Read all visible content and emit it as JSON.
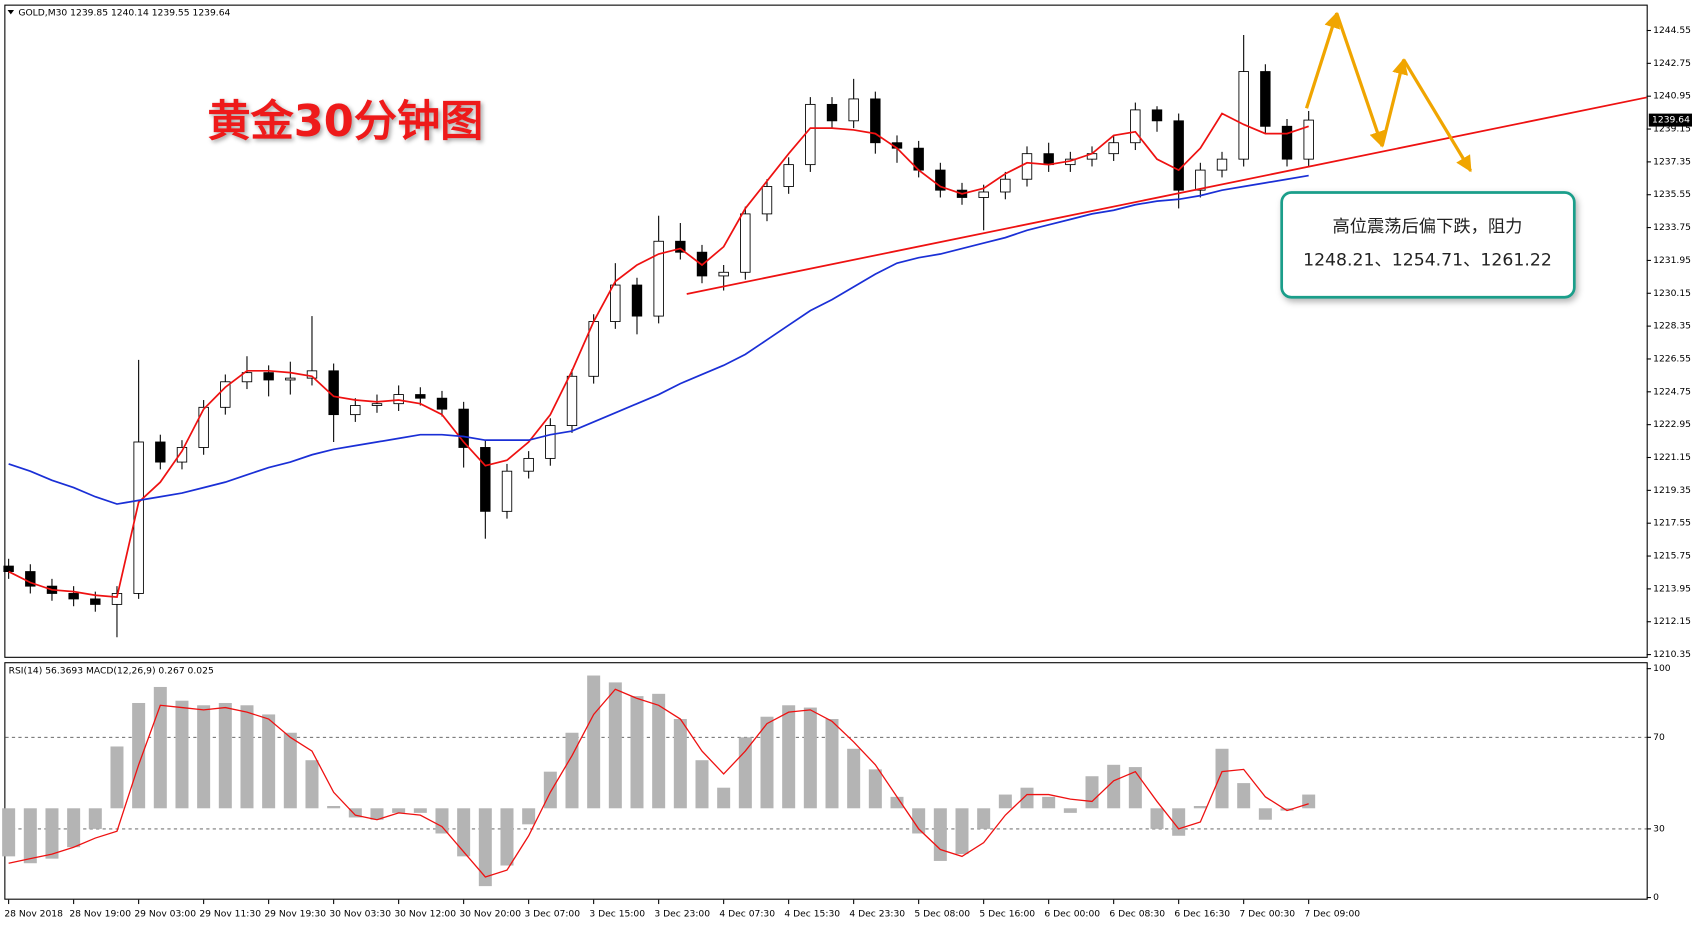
{
  "chart_data": [
    {
      "type": "candlestick",
      "title": "GOLD,M30  1239.85 1240.14 1239.55 1239.64",
      "categories": [
        "28 Nov 2018",
        null,
        null,
        "28 Nov 19:00",
        null,
        null,
        "29 Nov 03:00",
        null,
        null,
        "29 Nov 11:30",
        null,
        null,
        "29 Nov 19:30",
        null,
        null,
        "30 Nov 03:30",
        null,
        null,
        "30 Nov 12:00",
        null,
        null,
        "30 Nov 20:00",
        null,
        null,
        "3 Dec 07:00",
        null,
        null,
        "3 Dec 15:00",
        null,
        null,
        "3 Dec 23:00",
        null,
        null,
        "4 Dec 07:30",
        null,
        null,
        "4 Dec 15:30",
        null,
        null,
        "4 Dec 23:30",
        null,
        null,
        "5 Dec 08:00",
        null,
        null,
        "5 Dec 16:00",
        null,
        null,
        "6 Dec 00:00",
        null,
        null,
        "6 Dec 08:30",
        null,
        null,
        "6 Dec 16:30",
        null,
        null,
        "7 Dec 00:30",
        null,
        null,
        "7 Dec 09:00"
      ],
      "open": [
        1215.2,
        1214.9,
        1214.1,
        1213.7,
        1213.4,
        1213.1,
        1213.7,
        1222.0,
        1220.9,
        1221.7,
        1223.9,
        1225.3,
        1225.8,
        1225.4,
        1225.5,
        1225.9,
        1223.5,
        1224.0,
        1224.1,
        1224.6,
        1224.4,
        1223.8,
        1221.7,
        1218.2,
        1220.4,
        1221.1,
        1222.9,
        1225.6,
        1228.6,
        1230.6,
        1228.9,
        1233.0,
        1232.4,
        1231.1,
        1231.3,
        1234.5,
        1236.0,
        1237.2,
        1240.5,
        1239.6,
        1240.8,
        1238.4,
        1238.1,
        1236.9,
        1235.8,
        1235.4,
        1235.7,
        1236.4,
        1237.8,
        1237.2,
        1237.5,
        1237.8,
        1238.4,
        1240.2,
        1239.6,
        1235.8,
        1236.9,
        1237.5,
        1242.3,
        1239.3,
        1237.5
      ],
      "high": [
        1215.6,
        1215.3,
        1214.5,
        1214.1,
        1213.8,
        1214.1,
        1226.5,
        1222.4,
        1222.1,
        1224.3,
        1225.7,
        1226.7,
        1226.2,
        1226.4,
        1228.9,
        1226.3,
        1224.4,
        1224.6,
        1225.1,
        1225.0,
        1224.8,
        1224.2,
        1222.1,
        1220.8,
        1221.5,
        1223.3,
        1226.0,
        1229.0,
        1231.8,
        1231.0,
        1234.4,
        1234.0,
        1232.8,
        1231.7,
        1234.9,
        1236.4,
        1237.6,
        1240.9,
        1240.9,
        1241.9,
        1241.2,
        1238.8,
        1238.5,
        1237.3,
        1236.2,
        1236.1,
        1236.8,
        1238.2,
        1238.4,
        1237.9,
        1238.2,
        1238.8,
        1240.6,
        1240.4,
        1240.0,
        1237.3,
        1237.9,
        1244.3,
        1242.7,
        1239.7,
        1240.14
      ],
      "low": [
        1214.5,
        1213.7,
        1213.3,
        1213.0,
        1212.7,
        1211.3,
        1213.4,
        1220.5,
        1220.5,
        1221.3,
        1223.5,
        1224.9,
        1224.5,
        1224.6,
        1225.1,
        1222.0,
        1223.1,
        1223.6,
        1223.7,
        1224.0,
        1223.4,
        1220.6,
        1216.7,
        1217.8,
        1220.0,
        1220.7,
        1222.5,
        1225.2,
        1228.2,
        1227.9,
        1228.5,
        1232.0,
        1230.7,
        1230.3,
        1230.9,
        1234.1,
        1235.6,
        1236.8,
        1239.2,
        1239.2,
        1237.8,
        1237.3,
        1236.5,
        1235.4,
        1235.0,
        1233.6,
        1235.3,
        1236.0,
        1236.8,
        1236.8,
        1237.1,
        1237.4,
        1238.0,
        1239.0,
        1234.8,
        1235.4,
        1236.5,
        1237.1,
        1238.9,
        1237.1,
        1237.1
      ],
      "close": [
        1214.9,
        1214.1,
        1213.7,
        1213.4,
        1213.1,
        1213.7,
        1222.0,
        1220.9,
        1221.7,
        1223.9,
        1225.3,
        1225.8,
        1225.4,
        1225.5,
        1225.9,
        1223.5,
        1224.0,
        1224.1,
        1224.6,
        1224.4,
        1223.8,
        1221.7,
        1218.2,
        1220.4,
        1221.1,
        1222.9,
        1225.6,
        1228.6,
        1230.6,
        1228.9,
        1233.0,
        1232.4,
        1231.1,
        1231.3,
        1234.5,
        1236.0,
        1237.2,
        1240.5,
        1239.6,
        1240.8,
        1238.4,
        1238.1,
        1236.9,
        1235.8,
        1235.4,
        1235.7,
        1236.4,
        1237.8,
        1237.2,
        1237.5,
        1237.8,
        1238.4,
        1240.2,
        1239.6,
        1235.8,
        1236.9,
        1237.5,
        1242.3,
        1239.3,
        1237.5,
        1239.64
      ],
      "up_color": "#ffffff",
      "down_color": "#000000",
      "series": [
        {
          "color": "#ee1111",
          "values": [
            1214.9,
            1214.3,
            1213.9,
            1213.8,
            1213.6,
            1213.5,
            1218.7,
            1219.8,
            1221.5,
            1223.8,
            1225.0,
            1225.9,
            1225.9,
            1225.8,
            1225.6,
            1224.5,
            1224.3,
            1224.2,
            1224.3,
            1224.1,
            1223.5,
            1222.0,
            1220.7,
            1221.0,
            1222.0,
            1223.5,
            1225.9,
            1228.6,
            1230.8,
            1231.7,
            1232.3,
            1232.6,
            1231.7,
            1232.7,
            1234.8,
            1236.3,
            1237.8,
            1239.2,
            1239.2,
            1239.1,
            1238.9,
            1238.1,
            1236.9,
            1236.0,
            1235.6,
            1235.9,
            1236.7,
            1237.3,
            1237.2,
            1237.4,
            1237.8,
            1238.8,
            1239.0,
            1237.5,
            1236.9,
            1238.1,
            1240.0,
            1239.4,
            1238.9,
            1238.9,
            1239.3
          ]
        },
        {
          "color": "#1a2fd6",
          "values": [
            1220.8,
            1220.4,
            1219.9,
            1219.5,
            1219.0,
            1218.6,
            1218.8,
            1219.0,
            1219.2,
            1219.5,
            1219.8,
            1220.2,
            1220.6,
            1220.9,
            1221.3,
            1221.6,
            1221.8,
            1222.0,
            1222.2,
            1222.4,
            1222.4,
            1222.3,
            1222.1,
            1222.1,
            1222.1,
            1222.4,
            1222.6,
            1223.1,
            1223.6,
            1224.1,
            1224.6,
            1225.2,
            1225.7,
            1226.2,
            1226.8,
            1227.6,
            1228.4,
            1229.2,
            1229.8,
            1230.5,
            1231.2,
            1231.8,
            1232.1,
            1232.3,
            1232.6,
            1232.9,
            1233.2,
            1233.6,
            1233.9,
            1234.2,
            1234.5,
            1234.7,
            1235.0,
            1235.2,
            1235.3,
            1235.5,
            1235.8,
            1236.0,
            1236.2,
            1236.4,
            1236.6
          ]
        }
      ],
      "ylim": [
        1210.23,
        1245.91
      ],
      "yticks": [
        1244.55,
        1242.75,
        1240.95,
        1239.15,
        1237.35,
        1235.55,
        1233.75,
        1231.95,
        1230.15,
        1228.35,
        1226.55,
        1224.75,
        1222.95,
        1221.15,
        1219.35,
        1217.55,
        1215.75,
        1213.95,
        1212.15,
        1210.35
      ],
      "grid": false,
      "annotations": [
        "黄金30分钟图",
        "高位震荡后偏下跌，阻力",
        "1248.21、1254.71、1261.22"
      ]
    },
    {
      "type": "indicator",
      "title": "RSI(14) 56.3693  MACD(12,26,9) 0.267 0.025",
      "series": [
        {
          "type": "bar",
          "color": "#b4b4b4",
          "base": 39,
          "values": [
            18,
            15,
            17,
            22,
            30,
            66,
            85,
            92,
            86,
            84,
            85,
            84,
            80,
            72,
            60,
            40,
            35,
            34,
            37,
            37,
            28,
            18,
            5,
            14,
            32,
            55,
            72,
            97,
            94,
            88,
            89,
            78,
            60,
            48,
            70,
            79,
            84,
            83,
            78,
            65,
            56,
            44,
            28,
            16,
            19,
            30,
            45,
            48,
            44,
            37,
            53,
            58,
            57,
            30,
            27,
            40,
            65,
            50,
            34,
            38,
            45
          ]
        },
        {
          "type": "line",
          "color": "#ee1111",
          "values": [
            15,
            17,
            19,
            22,
            26,
            29,
            58,
            84,
            83,
            82,
            83,
            81,
            78,
            70,
            64,
            46,
            36,
            34,
            37,
            36,
            31,
            20,
            9,
            12,
            27,
            46,
            62,
            80,
            91,
            87,
            84,
            78,
            64,
            54,
            64,
            76,
            81,
            82,
            77,
            68,
            58,
            44,
            30,
            21,
            18,
            24,
            36,
            45,
            45,
            43,
            42,
            51,
            55,
            42,
            30,
            33,
            55,
            56,
            44,
            38,
            41
          ]
        }
      ],
      "ylim": [
        0,
        100
      ],
      "yticks": [
        100,
        70,
        30,
        0
      ]
    }
  ]
}
